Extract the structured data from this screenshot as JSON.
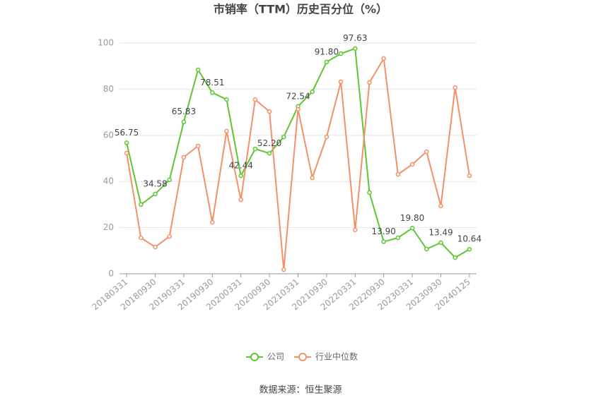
{
  "chart_data": {
    "type": "line",
    "title": "市销率（TTM）历史百分位（%）",
    "source": "数据来源：恒生聚源",
    "categories": [
      "20180331",
      null,
      "20180930",
      null,
      "20190331",
      null,
      "20190930",
      null,
      "20200331",
      null,
      "20200930",
      null,
      "20210331",
      null,
      "20210930",
      null,
      "20220331",
      null,
      "20220930",
      null,
      "20230331",
      null,
      "20230930",
      null,
      "20240125"
    ],
    "series": [
      {
        "name": "公司",
        "color": "#5dc631",
        "values": [
          56.75,
          30.0,
          34.58,
          40.7,
          65.83,
          88.4,
          78.51,
          75.5,
          42.44,
          54.1,
          52.2,
          59.3,
          72.54,
          78.9,
          91.8,
          95.4,
          97.63,
          35.2,
          13.9,
          15.6,
          19.8,
          10.7,
          13.49,
          7.0,
          10.64
        ],
        "value_labels": [
          "56.75",
          null,
          "34.58",
          null,
          "65.83",
          null,
          "78.51",
          null,
          "42.44",
          null,
          "52.20",
          null,
          "72.54",
          null,
          "91.80",
          null,
          "97.63",
          null,
          "13.90",
          null,
          "19.80",
          null,
          "13.49",
          null,
          "10.64"
        ]
      },
      {
        "name": "行业中位数",
        "color": "#f39069",
        "values": [
          52.3,
          15.6,
          11.6,
          16.2,
          50.5,
          55.4,
          22.3,
          61.8,
          32.1,
          75.5,
          70.3,
          1.8,
          71.3,
          41.6,
          59.3,
          83.2,
          19.0,
          82.9,
          93.3,
          43.1,
          47.4,
          52.9,
          29.4,
          80.7,
          42.5
        ]
      }
    ],
    "ylim": [
      0,
      100
    ],
    "yticks": [
      0,
      20,
      40,
      60,
      80,
      100
    ],
    "grid": true,
    "legend": "bottom"
  }
}
